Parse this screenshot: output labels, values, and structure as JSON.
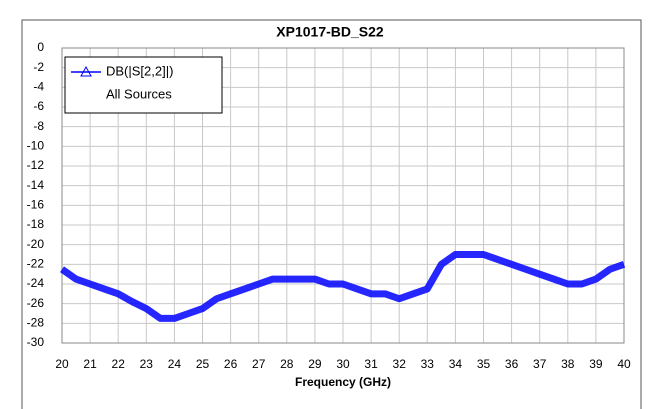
{
  "chart_data": {
    "type": "line",
    "title": "XP1017-BD_S22",
    "xlabel": "Frequency (GHz)",
    "x": [
      20,
      20.5,
      21,
      21.5,
      22,
      22.5,
      23,
      23.5,
      24,
      24.5,
      25,
      25.5,
      26,
      26.5,
      27,
      27.5,
      28,
      28.5,
      29,
      29.5,
      30,
      30.5,
      31,
      31.5,
      32,
      32.5,
      33,
      33.5,
      34,
      34.5,
      35,
      35.5,
      36,
      36.5,
      37,
      37.5,
      38,
      38.5,
      39,
      39.5,
      40
    ],
    "series": [
      {
        "name": "DB(|S[2,2]|)",
        "color": "#0000ff",
        "values": [
          -22.5,
          -23.5,
          -24,
          -24.5,
          -25,
          -25.8,
          -26.5,
          -27.5,
          -27.5,
          -27,
          -26.5,
          -25.5,
          -25,
          -24.5,
          -24,
          -23.5,
          -23.5,
          -23.5,
          -23.5,
          -24,
          -24,
          -24.5,
          -25,
          -25,
          -25.5,
          -25,
          -24.5,
          -22,
          -21,
          -21,
          -21,
          -21.5,
          -22,
          -22.5,
          -23,
          -23.5,
          -24,
          -24,
          -23.5,
          -22.5,
          -22
        ]
      }
    ],
    "legend_subtitle": "All Sources",
    "xlim": [
      20,
      40
    ],
    "xticks": [
      20,
      21,
      22,
      23,
      24,
      25,
      26,
      27,
      28,
      29,
      30,
      31,
      32,
      33,
      34,
      35,
      36,
      37,
      38,
      39,
      40
    ],
    "ylim": [
      -30,
      0
    ],
    "yticks": [
      0,
      -2,
      -4,
      -6,
      -8,
      -10,
      -12,
      -14,
      -16,
      -18,
      -20,
      -22,
      -24,
      -26,
      -28,
      -30
    ],
    "grid": true,
    "legend": "upper left"
  }
}
